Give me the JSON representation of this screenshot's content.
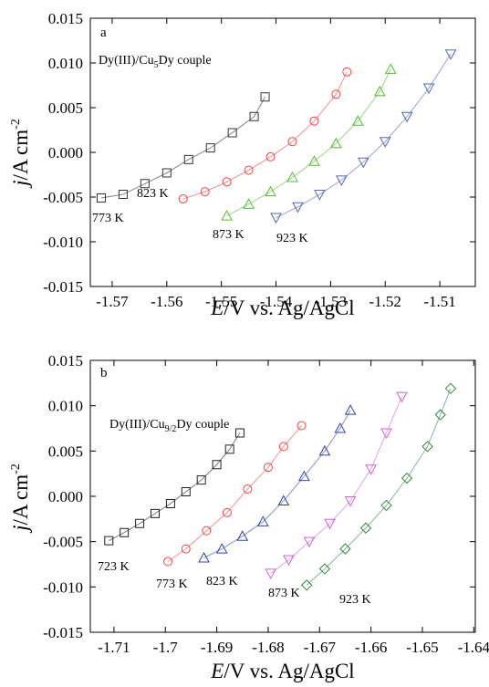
{
  "chart_data": [
    {
      "type": "scatter",
      "panel": "a",
      "subtitle": [
        "Dy(III)/Cu",
        "5",
        "Dy couple"
      ],
      "x_label": [
        "E",
        "/V vs. Ag/AgCl"
      ],
      "y_label": [
        "j",
        "/A cm",
        "-2"
      ],
      "xlim": [
        -1.574,
        -1.5035
      ],
      "xticks": [
        -1.57,
        -1.56,
        -1.55,
        -1.54,
        -1.53,
        -1.52,
        -1.51
      ],
      "ylim": [
        -0.015,
        0.015
      ],
      "yticks": [
        {
          "value": -0.015,
          "label": "-0.015"
        },
        {
          "value": -0.01,
          "label": "-0.010"
        },
        {
          "value": -0.005,
          "label": "-0.005"
        },
        {
          "value": 0,
          "label": "0.000"
        },
        {
          "value": 0.005,
          "label": "0.005"
        },
        {
          "value": 0.01,
          "label": "0.010"
        },
        {
          "value": 0.015,
          "label": "0.015"
        }
      ],
      "series": [
        {
          "name": "773 K",
          "color": "#333333",
          "marker": "square",
          "x": [
            -1.572,
            -1.568,
            -1.564,
            -1.56,
            -1.556,
            -1.552,
            -1.548,
            -1.544,
            -1.542
          ],
          "values": [
            -0.0051,
            -0.0047,
            -0.0035,
            -0.0023,
            -0.0008,
            0.0005,
            0.0022,
            0.004,
            0.0062
          ]
        },
        {
          "name": "823 K",
          "color": "#ee4444",
          "marker": "circle",
          "x": [
            -1.557,
            -1.553,
            -1.549,
            -1.545,
            -1.541,
            -1.537,
            -1.533,
            -1.529,
            -1.527
          ],
          "values": [
            -0.0052,
            -0.0044,
            -0.0033,
            -0.002,
            -0.0005,
            0.0012,
            0.0035,
            0.0065,
            0.009
          ]
        },
        {
          "name": "873 K",
          "color": "#55bb33",
          "marker": "triangle",
          "x": [
            -1.549,
            -1.545,
            -1.541,
            -1.537,
            -1.533,
            -1.529,
            -1.525,
            -1.521,
            -1.519
          ],
          "values": [
            -0.0071,
            -0.0058,
            -0.0044,
            -0.0028,
            -0.001,
            0.001,
            0.0035,
            0.0068,
            0.0093
          ]
        },
        {
          "name": "923 K",
          "color": "#5566bb",
          "marker": "triangle-down",
          "x": [
            -1.54,
            -1.536,
            -1.532,
            -1.528,
            -1.524,
            -1.52,
            -1.516,
            -1.512,
            -1.508
          ],
          "values": [
            -0.0073,
            -0.0061,
            -0.0047,
            -0.0031,
            -0.0011,
            0.0012,
            0.004,
            0.0072,
            0.011
          ]
        }
      ]
    },
    {
      "type": "scatter",
      "panel": "b",
      "subtitle": [
        "Dy(III)/Cu",
        "9/2",
        "Dy couple"
      ],
      "x_label": [
        "E",
        "/V vs. Ag/AgCl"
      ],
      "y_label": [
        "j",
        "/A cm",
        "-2"
      ],
      "xlim": [
        -1.7146,
        -1.6397
      ],
      "xticks": [
        -1.71,
        -1.7,
        -1.69,
        -1.68,
        -1.67,
        -1.66,
        -1.65,
        -1.64
      ],
      "ylim": [
        -0.015,
        0.015
      ],
      "yticks": [
        {
          "value": -0.015,
          "label": "-0.015"
        },
        {
          "value": -0.01,
          "label": "-0.010"
        },
        {
          "value": -0.005,
          "label": "-0.005"
        },
        {
          "value": 0,
          "label": "0.000"
        },
        {
          "value": 0.005,
          "label": "0.005"
        },
        {
          "value": 0.01,
          "label": "0.010"
        },
        {
          "value": 0.015,
          "label": "0.015"
        }
      ],
      "series": [
        {
          "name": "723 K",
          "color": "#222222",
          "marker": "square",
          "x": [
            -1.711,
            -1.708,
            -1.705,
            -1.702,
            -1.699,
            -1.696,
            -1.693,
            -1.69,
            -1.6875,
            -1.6855
          ],
          "values": [
            -0.0049,
            -0.004,
            -0.003,
            -0.0019,
            -0.0008,
            0.0005,
            0.0018,
            0.0035,
            0.0052,
            0.007
          ]
        },
        {
          "name": "773 K",
          "color": "#ee4444",
          "marker": "circle",
          "x": [
            -1.6995,
            -1.696,
            -1.692,
            -1.688,
            -1.684,
            -1.68,
            -1.677,
            -1.6735
          ],
          "values": [
            -0.0072,
            -0.0058,
            -0.0038,
            -0.0018,
            0.0008,
            0.0032,
            0.0055,
            0.0078
          ]
        },
        {
          "name": "823 K",
          "color": "#3344aa",
          "marker": "triangle",
          "x": [
            -1.6925,
            -1.689,
            -1.685,
            -1.681,
            -1.677,
            -1.673,
            -1.669,
            -1.666,
            -1.664
          ],
          "values": [
            -0.0068,
            -0.0058,
            -0.0044,
            -0.0028,
            -0.0005,
            0.0022,
            0.005,
            0.0075,
            0.0095
          ]
        },
        {
          "name": "873 K",
          "color": "#cc66cc",
          "marker": "triangle-down",
          "x": [
            -1.6795,
            -1.676,
            -1.672,
            -1.668,
            -1.664,
            -1.66,
            -1.657,
            -1.654
          ],
          "values": [
            -0.0085,
            -0.007,
            -0.005,
            -0.003,
            -0.0005,
            0.003,
            0.007,
            0.011
          ]
        },
        {
          "name": "923 K",
          "color": "#338844",
          "marker": "diamond",
          "x": [
            -1.6725,
            -1.669,
            -1.665,
            -1.661,
            -1.657,
            -1.653,
            -1.649,
            -1.6465,
            -1.6445
          ],
          "values": [
            -0.0098,
            -0.008,
            -0.0058,
            -0.0035,
            -0.001,
            0.002,
            0.0055,
            0.009,
            0.0119
          ]
        }
      ]
    }
  ]
}
